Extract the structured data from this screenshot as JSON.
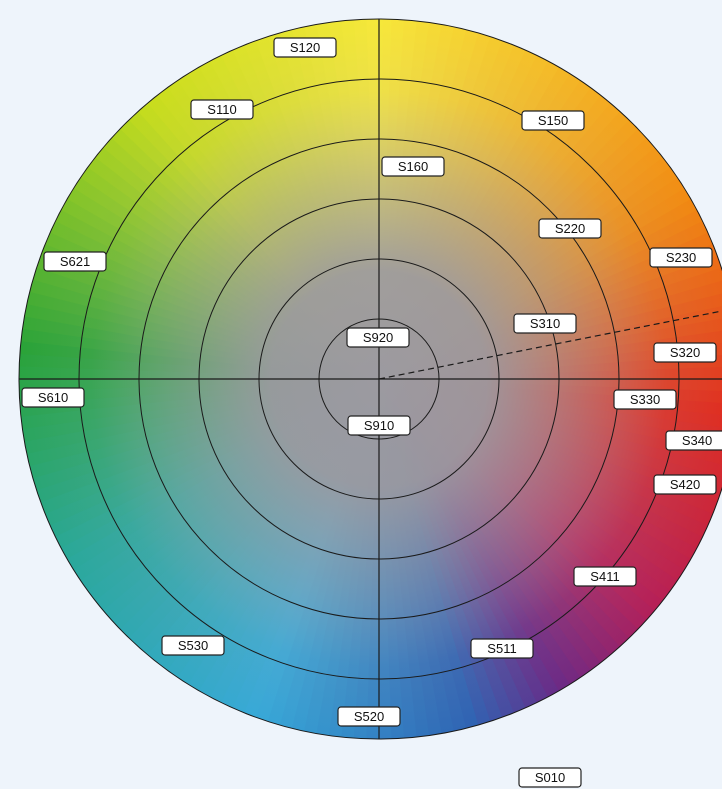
{
  "wheel": {
    "colors": {
      "yellow": "#f7e83a",
      "orange": "#f28a12",
      "red": "#e02c1e",
      "magenta": "#b51f58",
      "purple": "#6a2a86",
      "blue": "#2f63b3",
      "sky": "#38a9d8",
      "teal": "#2aa89a",
      "green": "#2aa338",
      "lime": "#c8dd1c",
      "neutral_gray": "#9c9aa0",
      "background": "#eef4fb"
    },
    "labels": [
      {
        "id": "s120",
        "text": "S120"
      },
      {
        "id": "s110",
        "text": "S110"
      },
      {
        "id": "s150",
        "text": "S150"
      },
      {
        "id": "s160",
        "text": "S160"
      },
      {
        "id": "s220",
        "text": "S220"
      },
      {
        "id": "s230",
        "text": "S230"
      },
      {
        "id": "s621",
        "text": "S621"
      },
      {
        "id": "s310",
        "text": "S310"
      },
      {
        "id": "s920",
        "text": "S920"
      },
      {
        "id": "s320",
        "text": "S320"
      },
      {
        "id": "s610",
        "text": "S610"
      },
      {
        "id": "s330",
        "text": "S330"
      },
      {
        "id": "s910",
        "text": "S910"
      },
      {
        "id": "s340",
        "text": "S340"
      },
      {
        "id": "s420",
        "text": "S420"
      },
      {
        "id": "s411",
        "text": "S411"
      },
      {
        "id": "s530",
        "text": "S530"
      },
      {
        "id": "s511",
        "text": "S511"
      },
      {
        "id": "s520",
        "text": "S520"
      },
      {
        "id": "s010",
        "text": "S010"
      }
    ]
  }
}
